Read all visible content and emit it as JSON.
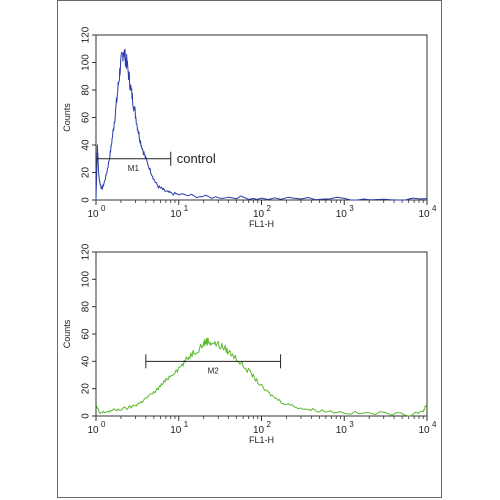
{
  "chart_data": [
    {
      "type": "line",
      "title": "",
      "xlabel": "FL1-H",
      "ylabel": "Counts",
      "x_scale": "log",
      "xlim": [
        1,
        10000
      ],
      "ylim": [
        0,
        120
      ],
      "x_ticks": [
        "10",
        "10",
        "10",
        "10",
        "10"
      ],
      "x_tick_exponents": [
        "0",
        "1",
        "2",
        "3",
        "4"
      ],
      "y_ticks": [
        "0",
        "20",
        "40",
        "60",
        "80",
        "100",
        "120"
      ],
      "grid": false,
      "series": [
        {
          "color": "#2a3aa8",
          "points": [
            [
              1.0,
              0
            ],
            [
              1.04,
              40
            ],
            [
              1.08,
              18
            ],
            [
              1.12,
              12
            ],
            [
              1.18,
              8
            ],
            [
              1.25,
              12
            ],
            [
              1.35,
              20
            ],
            [
              1.45,
              30
            ],
            [
              1.55,
              42
            ],
            [
              1.65,
              55
            ],
            [
              1.75,
              68
            ],
            [
              1.85,
              82
            ],
            [
              1.95,
              95
            ],
            [
              2.05,
              103
            ],
            [
              2.15,
              109
            ],
            [
              2.25,
              104
            ],
            [
              2.35,
              100
            ],
            [
              2.5,
              90
            ],
            [
              2.65,
              80
            ],
            [
              2.8,
              72
            ],
            [
              3.0,
              62
            ],
            [
              3.2,
              52
            ],
            [
              3.4,
              44
            ],
            [
              3.7,
              36
            ],
            [
              4.0,
              30
            ],
            [
              4.5,
              22
            ],
            [
              5.0,
              15
            ],
            [
              5.6,
              10
            ],
            [
              6.3,
              8
            ],
            [
              7.0,
              6
            ],
            [
              8.0,
              5
            ],
            [
              10,
              4
            ],
            [
              15,
              3
            ],
            [
              25,
              2
            ],
            [
              50,
              2
            ],
            [
              100,
              1
            ],
            [
              300,
              1
            ],
            [
              1000,
              1
            ],
            [
              3000,
              0.5
            ],
            [
              10000,
              1
            ]
          ]
        }
      ],
      "gate": {
        "label": "M1",
        "x_range": [
          1,
          8
        ],
        "y": 30
      },
      "annotation": "control"
    },
    {
      "type": "line",
      "title": "",
      "xlabel": "FL1-H",
      "ylabel": "Counts",
      "x_scale": "log",
      "xlim": [
        1,
        10000
      ],
      "ylim": [
        0,
        120
      ],
      "x_ticks": [
        "10",
        "10",
        "10",
        "10",
        "10"
      ],
      "x_tick_exponents": [
        "0",
        "1",
        "2",
        "3",
        "4"
      ],
      "y_ticks": [
        "0",
        "20",
        "40",
        "60",
        "80",
        "100",
        "120"
      ],
      "grid": false,
      "series": [
        {
          "color": "#5ab82a",
          "points": [
            [
              1.0,
              8
            ],
            [
              1.1,
              2
            ],
            [
              1.3,
              3
            ],
            [
              1.6,
              4
            ],
            [
              2.0,
              5
            ],
            [
              2.5,
              6
            ],
            [
              3.0,
              8
            ],
            [
              3.5,
              10
            ],
            [
              4.0,
              13
            ],
            [
              5.0,
              17
            ],
            [
              6.0,
              22
            ],
            [
              7.0,
              26
            ],
            [
              8.0,
              30
            ],
            [
              10,
              35
            ],
            [
              12,
              40
            ],
            [
              14,
              45
            ],
            [
              17,
              49
            ],
            [
              20,
              53
            ],
            [
              22,
              55
            ],
            [
              25,
              54
            ],
            [
              30,
              52
            ],
            [
              35,
              50
            ],
            [
              40,
              47
            ],
            [
              50,
              42
            ],
            [
              60,
              37
            ],
            [
              75,
              31
            ],
            [
              90,
              25
            ],
            [
              110,
              19
            ],
            [
              140,
              14
            ],
            [
              180,
              10
            ],
            [
              250,
              7
            ],
            [
              350,
              5
            ],
            [
              500,
              4
            ],
            [
              800,
              3
            ],
            [
              1500,
              2
            ],
            [
              3000,
              2
            ],
            [
              6000,
              1
            ],
            [
              9000,
              4
            ],
            [
              10000,
              8
            ]
          ]
        }
      ],
      "gate": {
        "label": "M2",
        "x_range": [
          4,
          170
        ],
        "y": 40
      },
      "annotation": ""
    }
  ]
}
